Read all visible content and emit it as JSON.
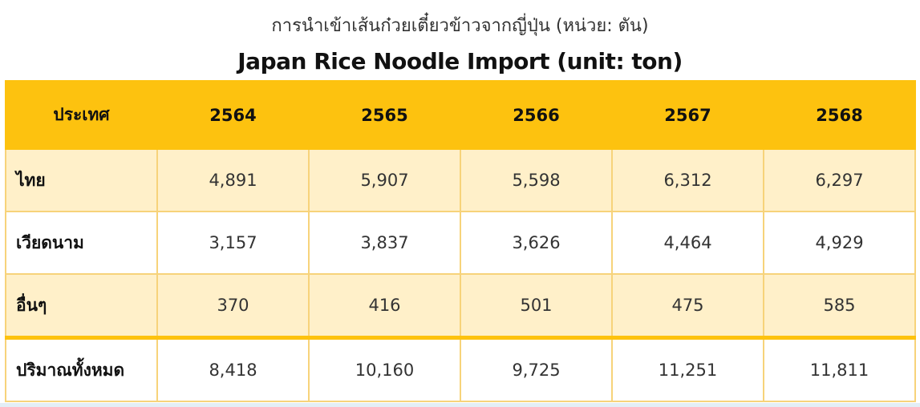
{
  "title_th": "การนำเข้าเส้นก๋วยเตี๋ยวข้าวจากญี่ปุ่น (หน่วย: ตัน)",
  "title_en": "Japan Rice Noodle Import (unit: ton)",
  "colors": {
    "header": "#fdc20f",
    "alt_row": "#fff0c9",
    "border": "#f7d37a"
  },
  "table": {
    "headers": [
      "ประเทศ",
      "2564",
      "2565",
      "2566",
      "2567",
      "2568"
    ],
    "rows": [
      {
        "label": "ไทย",
        "values": [
          "4,891",
          "5,907",
          "5,598",
          "6,312",
          "6,297"
        ]
      },
      {
        "label": "เวียดนาม",
        "values": [
          "3,157",
          "3,837",
          "3,626",
          "4,464",
          "4,929"
        ]
      },
      {
        "label": "อื่นๆ",
        "values": [
          "370",
          "416",
          "501",
          "475",
          "585"
        ]
      }
    ],
    "total": {
      "label": "ปริมาณทั้งหมด",
      "values": [
        "8,418",
        "10,160",
        "9,725",
        "11,251",
        "11,811"
      ]
    }
  }
}
